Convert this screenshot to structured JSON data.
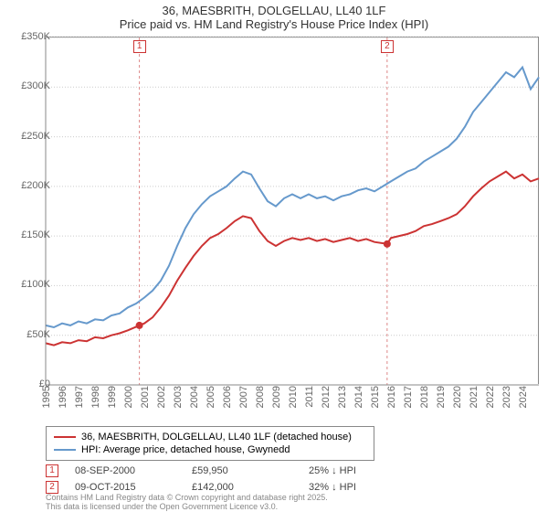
{
  "title_line1": "36, MAESBRITH, DOLGELLAU, LL40 1LF",
  "title_line2": "Price paid vs. HM Land Registry's House Price Index (HPI)",
  "chart": {
    "type": "line",
    "background_color": "#ffffff",
    "grid_color": "#cccccc",
    "axis_color": "#888888",
    "title_fontsize": 13,
    "label_fontsize": 11,
    "y": {
      "min": 0,
      "max": 350000,
      "step": 50000,
      "ticks": [
        "£0",
        "£50K",
        "£100K",
        "£150K",
        "£200K",
        "£250K",
        "£300K",
        "£350K"
      ]
    },
    "x": {
      "min": 1995,
      "max": 2025,
      "ticks": [
        "1995",
        "1996",
        "1997",
        "1998",
        "1999",
        "2000",
        "2001",
        "2002",
        "2003",
        "2004",
        "2005",
        "2006",
        "2007",
        "2008",
        "2009",
        "2010",
        "2011",
        "2012",
        "2013",
        "2014",
        "2015",
        "2016",
        "2017",
        "2018",
        "2019",
        "2020",
        "2021",
        "2022",
        "2023",
        "2024"
      ]
    },
    "series": [
      {
        "name": "36, MAESBRITH, DOLGELLAU, LL40 1LF (detached house)",
        "color": "#cc3333",
        "line_width": 2,
        "points": [
          [
            1995,
            42000
          ],
          [
            1995.5,
            40000
          ],
          [
            1996,
            43000
          ],
          [
            1996.5,
            42000
          ],
          [
            1997,
            45000
          ],
          [
            1997.5,
            44000
          ],
          [
            1998,
            48000
          ],
          [
            1998.5,
            47000
          ],
          [
            1999,
            50000
          ],
          [
            1999.5,
            52000
          ],
          [
            2000,
            55000
          ],
          [
            2000.7,
            59950
          ],
          [
            2001,
            62000
          ],
          [
            2001.5,
            68000
          ],
          [
            2002,
            78000
          ],
          [
            2002.5,
            90000
          ],
          [
            2003,
            105000
          ],
          [
            2003.5,
            118000
          ],
          [
            2004,
            130000
          ],
          [
            2004.5,
            140000
          ],
          [
            2005,
            148000
          ],
          [
            2005.5,
            152000
          ],
          [
            2006,
            158000
          ],
          [
            2006.5,
            165000
          ],
          [
            2007,
            170000
          ],
          [
            2007.5,
            168000
          ],
          [
            2008,
            155000
          ],
          [
            2008.5,
            145000
          ],
          [
            2009,
            140000
          ],
          [
            2009.5,
            145000
          ],
          [
            2010,
            148000
          ],
          [
            2010.5,
            146000
          ],
          [
            2011,
            148000
          ],
          [
            2011.5,
            145000
          ],
          [
            2012,
            147000
          ],
          [
            2012.5,
            144000
          ],
          [
            2013,
            146000
          ],
          [
            2013.5,
            148000
          ],
          [
            2014,
            145000
          ],
          [
            2014.5,
            147000
          ],
          [
            2015,
            144000
          ],
          [
            2015.77,
            142000
          ],
          [
            2016,
            148000
          ],
          [
            2016.5,
            150000
          ],
          [
            2017,
            152000
          ],
          [
            2017.5,
            155000
          ],
          [
            2018,
            160000
          ],
          [
            2018.5,
            162000
          ],
          [
            2019,
            165000
          ],
          [
            2019.5,
            168000
          ],
          [
            2020,
            172000
          ],
          [
            2020.5,
            180000
          ],
          [
            2021,
            190000
          ],
          [
            2021.5,
            198000
          ],
          [
            2022,
            205000
          ],
          [
            2022.5,
            210000
          ],
          [
            2023,
            215000
          ],
          [
            2023.5,
            208000
          ],
          [
            2024,
            212000
          ],
          [
            2024.5,
            205000
          ],
          [
            2025,
            208000
          ]
        ]
      },
      {
        "name": "HPI: Average price, detached house, Gwynedd",
        "color": "#6699cc",
        "line_width": 2,
        "points": [
          [
            1995,
            60000
          ],
          [
            1995.5,
            58000
          ],
          [
            1996,
            62000
          ],
          [
            1996.5,
            60000
          ],
          [
            1997,
            64000
          ],
          [
            1997.5,
            62000
          ],
          [
            1998,
            66000
          ],
          [
            1998.5,
            65000
          ],
          [
            1999,
            70000
          ],
          [
            1999.5,
            72000
          ],
          [
            2000,
            78000
          ],
          [
            2000.5,
            82000
          ],
          [
            2001,
            88000
          ],
          [
            2001.5,
            95000
          ],
          [
            2002,
            105000
          ],
          [
            2002.5,
            120000
          ],
          [
            2003,
            140000
          ],
          [
            2003.5,
            158000
          ],
          [
            2004,
            172000
          ],
          [
            2004.5,
            182000
          ],
          [
            2005,
            190000
          ],
          [
            2005.5,
            195000
          ],
          [
            2006,
            200000
          ],
          [
            2006.5,
            208000
          ],
          [
            2007,
            215000
          ],
          [
            2007.5,
            212000
          ],
          [
            2008,
            198000
          ],
          [
            2008.5,
            185000
          ],
          [
            2009,
            180000
          ],
          [
            2009.5,
            188000
          ],
          [
            2010,
            192000
          ],
          [
            2010.5,
            188000
          ],
          [
            2011,
            192000
          ],
          [
            2011.5,
            188000
          ],
          [
            2012,
            190000
          ],
          [
            2012.5,
            186000
          ],
          [
            2013,
            190000
          ],
          [
            2013.5,
            192000
          ],
          [
            2014,
            196000
          ],
          [
            2014.5,
            198000
          ],
          [
            2015,
            195000
          ],
          [
            2015.5,
            200000
          ],
          [
            2016,
            205000
          ],
          [
            2016.5,
            210000
          ],
          [
            2017,
            215000
          ],
          [
            2017.5,
            218000
          ],
          [
            2018,
            225000
          ],
          [
            2018.5,
            230000
          ],
          [
            2019,
            235000
          ],
          [
            2019.5,
            240000
          ],
          [
            2020,
            248000
          ],
          [
            2020.5,
            260000
          ],
          [
            2021,
            275000
          ],
          [
            2021.5,
            285000
          ],
          [
            2022,
            295000
          ],
          [
            2022.5,
            305000
          ],
          [
            2023,
            315000
          ],
          [
            2023.5,
            310000
          ],
          [
            2024,
            320000
          ],
          [
            2024.5,
            298000
          ],
          [
            2025,
            310000
          ]
        ]
      }
    ],
    "sale_markers": [
      {
        "badge": "1",
        "year": 2000.7,
        "price": 59950
      },
      {
        "badge": "2",
        "year": 2015.77,
        "price": 142000
      }
    ],
    "marker_border_color": "#cc3333",
    "marker_dashline_color": "#dd8888"
  },
  "legend": {
    "items": [
      {
        "color": "#cc3333",
        "label": "36, MAESBRITH, DOLGELLAU, LL40 1LF (detached house)"
      },
      {
        "color": "#6699cc",
        "label": "HPI: Average price, detached house, Gwynedd"
      }
    ]
  },
  "transactions": [
    {
      "badge": "1",
      "date": "08-SEP-2000",
      "price": "£59,950",
      "delta": "25% ↓ HPI"
    },
    {
      "badge": "2",
      "date": "09-OCT-2015",
      "price": "£142,000",
      "delta": "32% ↓ HPI"
    }
  ],
  "footer_line1": "Contains HM Land Registry data © Crown copyright and database right 2025.",
  "footer_line2": "This data is licensed under the Open Government Licence v3.0."
}
